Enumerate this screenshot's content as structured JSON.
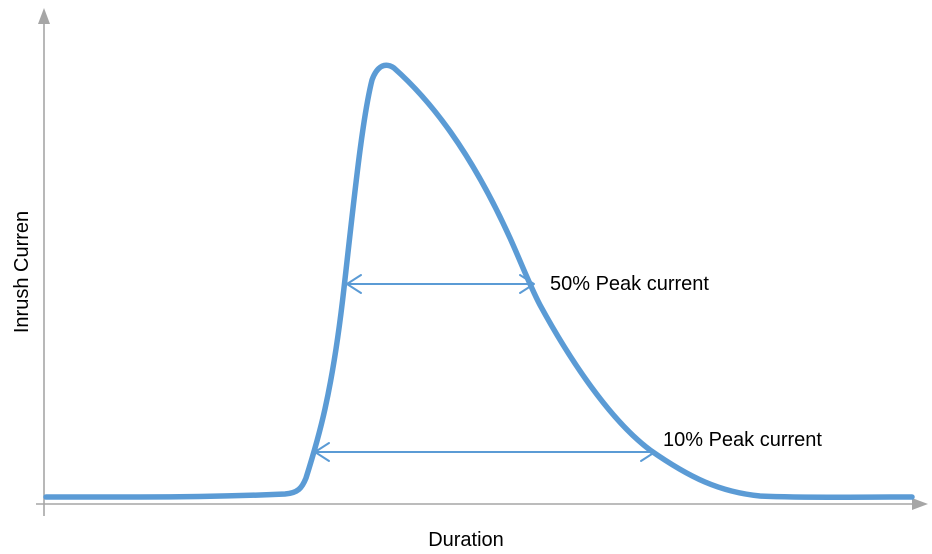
{
  "diagram": {
    "y_axis_label": "Inrush Curren",
    "x_axis_label": "Duration",
    "annotations": [
      {
        "label": "50% Peak current",
        "fraction_of_peak": 0.5
      },
      {
        "label": "10% Peak current",
        "fraction_of_peak": 0.1
      }
    ],
    "colors": {
      "curve": "#5b9bd5",
      "axis": "#a6a6a6",
      "text": "#000000"
    }
  }
}
